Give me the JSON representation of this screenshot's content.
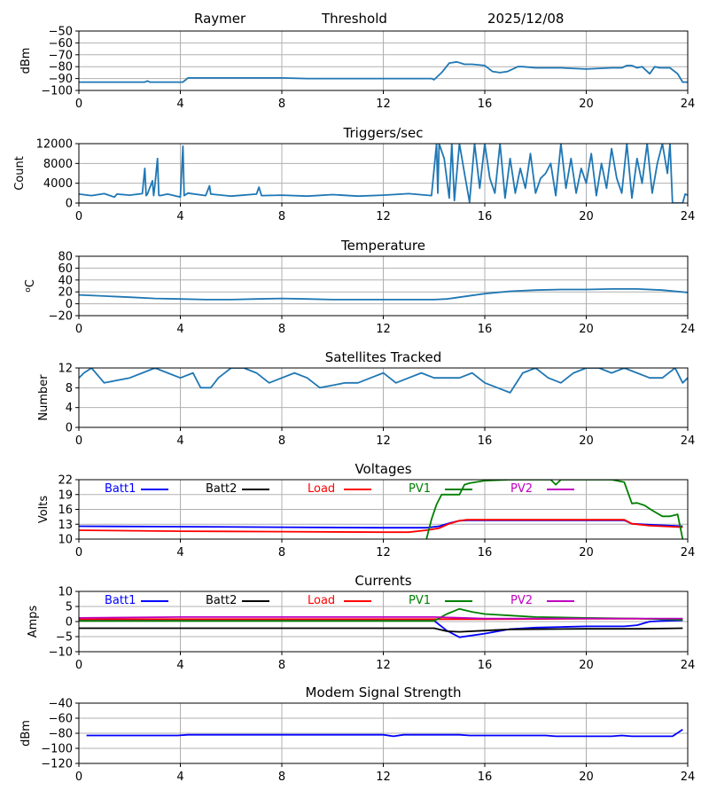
{
  "header": {
    "station": "Raymer",
    "label": "Threshold",
    "date": "2025/12/08"
  },
  "chart_data": [
    {
      "type": "line",
      "id": "threshold",
      "title": "",
      "ylabel": "dBm",
      "xlim": [
        0,
        24
      ],
      "ylim": [
        -100,
        -50
      ],
      "xticks": [
        "0",
        "4",
        "8",
        "12",
        "16",
        "20",
        "24"
      ],
      "yticks": [
        "-50",
        "-60",
        "-70",
        "-80",
        "-90",
        "-100"
      ],
      "ytick_values": [
        -50,
        -60,
        -70,
        -80,
        -90,
        -100
      ],
      "grid": true,
      "series": [
        {
          "name": "Threshold",
          "color": "#1f77b4",
          "x": [
            0,
            2.6,
            2.7,
            2.8,
            4.1,
            4.3,
            6,
            8,
            9,
            12,
            13.9,
            14,
            14.3,
            14.6,
            14.9,
            15.2,
            15.5,
            16,
            16.3,
            16.6,
            16.9,
            17.1,
            17.3,
            17.5,
            18,
            19,
            20,
            21,
            21.4,
            21.6,
            21.8,
            22,
            22.2,
            22.5,
            22.7,
            22.9,
            23.3,
            23.6,
            23.8,
            24
          ],
          "y": [
            -93,
            -93,
            -92,
            -93,
            -93,
            -89.5,
            -89.5,
            -89.5,
            -90,
            -90,
            -90,
            -91,
            -85,
            -77,
            -76,
            -78,
            -78,
            -79,
            -84,
            -85,
            -84,
            -82,
            -80,
            -80,
            -81,
            -81,
            -82,
            -81,
            -81,
            -79,
            -79,
            -81,
            -80,
            -86,
            -80,
            -81,
            -81,
            -86,
            -93,
            -93
          ]
        }
      ]
    },
    {
      "type": "line",
      "id": "triggers",
      "title": "Triggers/sec",
      "ylabel": "Count",
      "xlim": [
        0,
        24
      ],
      "ylim": [
        0,
        12000
      ],
      "xticks": [
        "0",
        "4",
        "8",
        "12",
        "16",
        "20",
        "24"
      ],
      "yticks": [
        "12000",
        "8000",
        "4000",
        "0"
      ],
      "ytick_values": [
        12000,
        8000,
        4000,
        0
      ],
      "grid": true,
      "series": [
        {
          "name": "Triggers",
          "color": "#1f77b4",
          "x": [
            0,
            0.5,
            1,
            1.4,
            1.5,
            2,
            2.5,
            2.6,
            2.65,
            2.7,
            2.9,
            2.95,
            3.0,
            3.1,
            3.15,
            3.2,
            3.5,
            4.0,
            4.1,
            4.15,
            4.3,
            5,
            5.15,
            5.2,
            6,
            7,
            7.1,
            7.2,
            8,
            9,
            10,
            11,
            12,
            13,
            13.9,
            14.1,
            14.15,
            14.2,
            14.4,
            14.6,
            14.7,
            14.8,
            15,
            15.2,
            15.4,
            15.6,
            15.8,
            16,
            16.2,
            16.4,
            16.6,
            16.8,
            17,
            17.2,
            17.4,
            17.6,
            17.8,
            18,
            18.2,
            18.4,
            18.6,
            18.8,
            19,
            19.2,
            19.4,
            19.6,
            19.8,
            20,
            20.2,
            20.4,
            20.6,
            20.8,
            21,
            21.2,
            21.4,
            21.6,
            21.8,
            22,
            22.2,
            22.4,
            22.6,
            22.8,
            23,
            23.2,
            23.3,
            23.4,
            23.8,
            23.9,
            24
          ],
          "y": [
            1800,
            1500,
            1900,
            1200,
            1800,
            1600,
            1900,
            7000,
            1500,
            1800,
            4500,
            1500,
            3800,
            9000,
            1600,
            1500,
            1800,
            1200,
            11500,
            1500,
            2000,
            1500,
            3500,
            1800,
            1400,
            1800,
            3200,
            1500,
            1600,
            1400,
            1700,
            1400,
            1600,
            1900,
            1500,
            12000,
            2000,
            12000,
            9000,
            1000,
            12000,
            500,
            12000,
            6000,
            200,
            12000,
            3000,
            12000,
            5000,
            2000,
            12000,
            1000,
            9000,
            2000,
            7000,
            3000,
            10000,
            2000,
            5000,
            6000,
            8000,
            1500,
            12000,
            3000,
            9000,
            2000,
            7000,
            4000,
            10000,
            1500,
            8000,
            3000,
            11000,
            5000,
            2000,
            12000,
            1000,
            9000,
            4000,
            12000,
            2000,
            8000,
            12000,
            6000,
            12000,
            0,
            0,
            1800,
            1600
          ]
        }
      ]
    },
    {
      "type": "line",
      "id": "temperature",
      "title": "Temperature",
      "ylabel": "oC",
      "xlim": [
        0,
        24
      ],
      "ylim": [
        -20,
        80
      ],
      "xticks": [
        "0",
        "4",
        "8",
        "12",
        "16",
        "20",
        "24"
      ],
      "yticks": [
        "80",
        "60",
        "40",
        "20",
        "0",
        "-20"
      ],
      "ytick_values": [
        80,
        60,
        40,
        20,
        0,
        -20
      ],
      "grid": true,
      "series": [
        {
          "name": "Temperature",
          "color": "#1f77b4",
          "x": [
            0,
            1,
            2,
            3,
            4,
            5,
            6,
            7,
            8,
            9,
            10,
            11,
            12,
            13,
            14,
            14.5,
            15,
            16,
            17,
            18,
            19,
            20,
            21,
            22,
            23,
            24
          ],
          "y": [
            15,
            13,
            11,
            9,
            8,
            7,
            7,
            8,
            9,
            8,
            7,
            7,
            7,
            7,
            7,
            8,
            11,
            17,
            21,
            23,
            24,
            24,
            25,
            25,
            23,
            19
          ]
        }
      ]
    },
    {
      "type": "line",
      "id": "satellites",
      "title": "Satellites Tracked",
      "ylabel": "Number",
      "xlim": [
        0,
        24
      ],
      "ylim": [
        0,
        12
      ],
      "xticks": [
        "0",
        "4",
        "8",
        "12",
        "16",
        "20",
        "24"
      ],
      "yticks": [
        "12",
        "8",
        "4",
        "0"
      ],
      "ytick_values": [
        12,
        8,
        4,
        0
      ],
      "grid": true,
      "series": [
        {
          "name": "Satellites",
          "color": "#1f77b4",
          "x": [
            0,
            0.2,
            0.5,
            1,
            2,
            2.5,
            3,
            3.5,
            4,
            4.5,
            4.8,
            5.2,
            5.5,
            6,
            6.5,
            7,
            7.5,
            8,
            8.5,
            9,
            9.5,
            10.5,
            11,
            11.5,
            12,
            12.5,
            13,
            13.5,
            14,
            15,
            15.5,
            16,
            16.5,
            17,
            17.5,
            18,
            18.5,
            19,
            19.5,
            20,
            20.5,
            21,
            21.5,
            22,
            22.5,
            23,
            23.5,
            23.8,
            24
          ],
          "y": [
            10,
            11,
            12,
            9,
            10,
            11,
            12,
            11,
            10,
            11,
            8,
            8,
            10,
            12,
            12,
            11,
            9,
            10,
            11,
            10,
            8,
            9,
            9,
            10,
            11,
            9,
            10,
            11,
            10,
            10,
            11,
            9,
            8,
            7,
            11,
            12,
            10,
            9,
            11,
            12,
            12,
            11,
            12,
            11,
            10,
            10,
            12,
            9,
            10
          ]
        }
      ]
    },
    {
      "type": "line",
      "id": "voltages",
      "title": "Voltages",
      "ylabel": "Volts",
      "xlim": [
        0,
        24
      ],
      "ylim": [
        10,
        22
      ],
      "xticks": [
        "0",
        "4",
        "8",
        "12",
        "16",
        "20",
        "24"
      ],
      "yticks": [
        "22",
        "19",
        "16",
        "13",
        "10"
      ],
      "ytick_values": [
        22,
        19,
        16,
        13,
        10
      ],
      "grid": true,
      "legend": "top",
      "series": [
        {
          "name": "Batt1",
          "color": "#0000ff",
          "x": [
            0,
            4,
            8,
            12,
            13.7,
            14.2,
            14.6,
            15,
            15.3,
            16,
            20,
            21.5,
            21.8,
            22.5,
            23.8
          ],
          "y": [
            12.6,
            12.5,
            12.4,
            12.3,
            12.3,
            12.6,
            13.2,
            13.7,
            13.8,
            13.8,
            13.8,
            13.8,
            13.1,
            12.9,
            12.6
          ]
        },
        {
          "name": "Batt2",
          "color": "#000000",
          "x": [],
          "y": []
        },
        {
          "name": "Load",
          "color": "#ff0000",
          "x": [
            0,
            4,
            8,
            12,
            13,
            13.7,
            14.2,
            14.6,
            15,
            15.3,
            16,
            20,
            21.5,
            21.8,
            22.5,
            23.8
          ],
          "y": [
            11.8,
            11.6,
            11.5,
            11.4,
            11.4,
            11.8,
            12.2,
            13.1,
            13.7,
            13.9,
            13.9,
            13.9,
            13.9,
            13.1,
            12.7,
            12.4
          ]
        },
        {
          "name": "PV1",
          "color": "#008000",
          "x": [
            13.7,
            13.9,
            14.1,
            14.3,
            14.5,
            15,
            15.2,
            15.4,
            16,
            17,
            18,
            18.6,
            18.8,
            19,
            20,
            21,
            21.5,
            21.8,
            22,
            22.3,
            22.6,
            23,
            23.3,
            23.6,
            23.8
          ],
          "y": [
            10,
            14,
            17,
            19,
            19,
            19,
            21,
            21.3,
            21.8,
            22,
            22,
            22,
            21,
            22,
            22,
            22,
            21.5,
            17.2,
            17.3,
            16.8,
            15.8,
            14.6,
            14.6,
            15,
            10
          ]
        },
        {
          "name": "PV2",
          "color": "#bf00bf",
          "x": [],
          "y": []
        }
      ]
    },
    {
      "type": "line",
      "id": "currents",
      "title": "Currents",
      "ylabel": "Amps",
      "xlim": [
        0,
        24
      ],
      "ylim": [
        -10,
        10
      ],
      "xticks": [
        "0",
        "4",
        "8",
        "12",
        "16",
        "20",
        "24"
      ],
      "yticks": [
        "10",
        "5",
        "0",
        "-5",
        "-10"
      ],
      "ytick_values": [
        10,
        5,
        0,
        -5,
        -10
      ],
      "grid": true,
      "legend": "top",
      "series": [
        {
          "name": "Batt1",
          "color": "#0000ff",
          "x": [
            0,
            14,
            14.5,
            15,
            16,
            17,
            18,
            19,
            20,
            21.5,
            22,
            22.5,
            23,
            23.8
          ],
          "y": [
            0.3,
            0.3,
            -3,
            -5.2,
            -4,
            -2.5,
            -2,
            -1.8,
            -1.6,
            -1.6,
            -1.2,
            0,
            0.2,
            0.4
          ]
        },
        {
          "name": "Batt2",
          "color": "#000000",
          "x": [
            0,
            14,
            14.5,
            15,
            16,
            17,
            20,
            22,
            23.8
          ],
          "y": [
            -2.2,
            -2.2,
            -3.2,
            -3.4,
            -3,
            -2.6,
            -2.4,
            -2.4,
            -2.2
          ]
        },
        {
          "name": "Load",
          "color": "#ff0000",
          "x": [
            0,
            14,
            16,
            20,
            23.8
          ],
          "y": [
            0.8,
            0.8,
            0.8,
            0.9,
            0.9
          ]
        },
        {
          "name": "PV1",
          "color": "#008000",
          "x": [
            0,
            14,
            14.5,
            15,
            15.5,
            16,
            17,
            18,
            20,
            22,
            23.8
          ],
          "y": [
            0.2,
            0.2,
            2.5,
            4.2,
            3.2,
            2.5,
            2,
            1.5,
            1.2,
            1,
            0.6
          ]
        },
        {
          "name": "PV2",
          "color": "#bf00bf",
          "x": [
            0,
            4,
            12,
            14,
            16,
            20,
            23.8
          ],
          "y": [
            1.2,
            1.5,
            1.5,
            1.5,
            1,
            1,
            1
          ]
        }
      ]
    },
    {
      "type": "line",
      "id": "modem",
      "title": "Modem Signal Strength",
      "ylabel": "dBm",
      "xlim": [
        0,
        24
      ],
      "ylim": [
        -120,
        -40
      ],
      "xticks": [
        "0",
        "4",
        "8",
        "12",
        "16",
        "20",
        "24"
      ],
      "yticks": [
        "-40",
        "-60",
        "-80",
        "-100",
        "-120"
      ],
      "ytick_values": [
        -40,
        -60,
        -80,
        -100,
        -120
      ],
      "grid": true,
      "series": [
        {
          "name": "Modem",
          "color": "#0000ff",
          "x": [
            0.3,
            3.9,
            4.3,
            12,
            12.4,
            12.8,
            15,
            15.4,
            18.4,
            18.8,
            21,
            21.4,
            21.8,
            23.4,
            23.8
          ],
          "y": [
            -83,
            -83,
            -82,
            -82,
            -84,
            -82,
            -82,
            -83,
            -83,
            -84,
            -84,
            -83,
            -84,
            -84,
            -75
          ]
        }
      ]
    }
  ]
}
